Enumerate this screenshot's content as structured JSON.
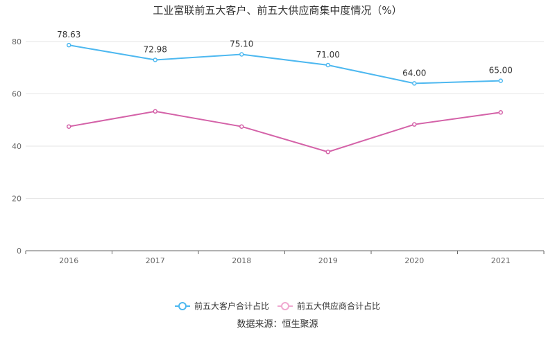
{
  "chart_data": {
    "type": "line",
    "title": "工业富联前五大客户、前五大供应商集中度情况（%）",
    "categories": [
      "2016",
      "2017",
      "2018",
      "2019",
      "2020",
      "2021"
    ],
    "ylim": [
      0,
      80
    ],
    "yticks": [
      "0",
      "20",
      "40",
      "60",
      "80"
    ],
    "series": [
      {
        "name": "前五大客户合计占比",
        "color": "#4db8f0",
        "values": [
          78.63,
          72.98,
          75.1,
          71.0,
          64.0,
          65.0
        ],
        "labels": [
          "78.63",
          "72.98",
          "75.10",
          "71.00",
          "64.00",
          "65.00"
        ],
        "show_labels": true
      },
      {
        "name": "前五大供应商合计占比",
        "color": "#d462a8",
        "legend_color": "#f0a8d0",
        "values": [
          47.5,
          53.3,
          47.5,
          37.8,
          48.3,
          52.9
        ],
        "labels": [
          "",
          "",
          "",
          "",
          "",
          ""
        ],
        "show_labels": false
      }
    ],
    "legend_position": "bottom-center"
  },
  "source": "数据来源：恒生聚源"
}
